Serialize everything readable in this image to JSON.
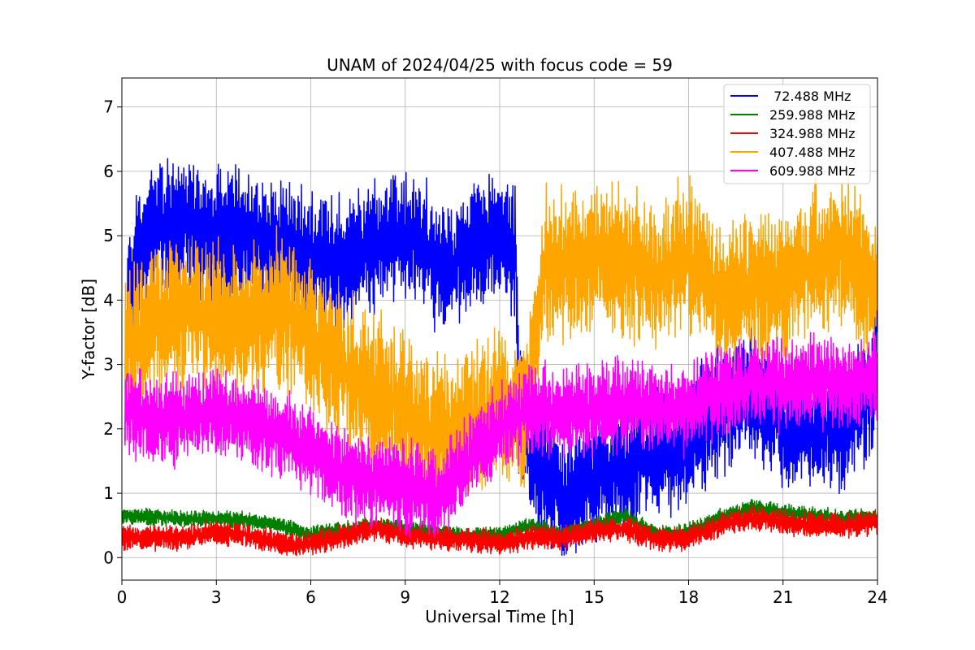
{
  "chart_data": {
    "type": "line",
    "title": "UNAM of 2024/04/25 with focus code = 59",
    "xlabel": "Universal Time [h]",
    "ylabel": "Y-factor [dB]",
    "xlim": [
      0,
      24
    ],
    "ylim": [
      -0.35,
      7.45
    ],
    "xticks": [
      "0",
      "3",
      "6",
      "9",
      "12",
      "15",
      "18",
      "21",
      "24"
    ],
    "yticks": [
      "0",
      "1",
      "2",
      "3",
      "4",
      "5",
      "6",
      "7"
    ],
    "grid": true,
    "legend_position": "top-right",
    "series": [
      {
        "name": " 72.488 MHz",
        "color": "#0000ff",
        "noise": 1.05,
        "x": [
          0.1,
          0.2,
          0.5,
          1,
          2,
          3,
          4,
          5,
          6,
          7,
          8,
          8.8,
          9.5,
          10,
          11,
          12,
          12.5,
          12.6,
          13,
          13.5,
          14,
          14.5,
          15,
          16,
          17,
          18,
          19,
          20,
          21,
          22,
          23,
          23.9,
          24
        ],
        "y": [
          2.5,
          4.3,
          4.7,
          5.1,
          5.2,
          5.0,
          5.0,
          4.9,
          4.7,
          4.6,
          4.8,
          5.1,
          4.9,
          4.5,
          4.7,
          5.0,
          4.8,
          2.3,
          1.5,
          1.2,
          1.0,
          1.0,
          1.3,
          1.4,
          1.6,
          1.8,
          2.3,
          2.7,
          2.0,
          2.0,
          2.0,
          2.7,
          4.5
        ]
      },
      {
        "name": "259.988 MHz",
        "color": "#008000",
        "noise": 0.14,
        "x": [
          0,
          1,
          2,
          3,
          4,
          5,
          6,
          7,
          8,
          9,
          10,
          11,
          12,
          13,
          14,
          15,
          16,
          17,
          18,
          19,
          20,
          21,
          22,
          23,
          24
        ],
        "y": [
          0.65,
          0.63,
          0.6,
          0.6,
          0.58,
          0.5,
          0.35,
          0.42,
          0.5,
          0.45,
          0.4,
          0.33,
          0.35,
          0.5,
          0.35,
          0.5,
          0.65,
          0.35,
          0.4,
          0.62,
          0.78,
          0.7,
          0.65,
          0.62,
          0.62
        ]
      },
      {
        "name": "324.988 MHz",
        "color": "#ff0000",
        "noise": 0.2,
        "x": [
          0,
          1,
          2,
          3,
          4,
          5,
          6,
          7,
          8,
          9,
          10,
          11,
          12,
          13,
          14,
          15,
          16,
          17,
          18,
          19,
          20,
          21,
          22,
          23,
          24
        ],
        "y": [
          0.32,
          0.3,
          0.32,
          0.38,
          0.35,
          0.22,
          0.22,
          0.32,
          0.45,
          0.35,
          0.3,
          0.28,
          0.22,
          0.32,
          0.3,
          0.42,
          0.45,
          0.28,
          0.3,
          0.5,
          0.62,
          0.55,
          0.5,
          0.5,
          0.55
        ]
      },
      {
        "name": "407.488 MHz",
        "color": "#ffa500",
        "noise": 1.25,
        "x": [
          0.1,
          1,
          2,
          3,
          4,
          5,
          6,
          7,
          8,
          9,
          10,
          11,
          12,
          12.8,
          13.5,
          14,
          15,
          16,
          17,
          18,
          19,
          20,
          21,
          22,
          23,
          24
        ],
        "y": [
          3.2,
          3.6,
          3.8,
          3.7,
          3.6,
          3.9,
          3.4,
          2.9,
          2.6,
          2.3,
          1.9,
          2.1,
          2.3,
          2.2,
          4.6,
          4.5,
          4.7,
          4.6,
          4.4,
          4.7,
          4.0,
          4.2,
          4.3,
          4.6,
          4.8,
          4.2
        ]
      },
      {
        "name": "609.988 MHz",
        "color": "#ff00ff",
        "noise": 0.75,
        "x": [
          0.1,
          1,
          2,
          3,
          4,
          5,
          6,
          7,
          8,
          9,
          10,
          11,
          12,
          13,
          14,
          15,
          16,
          17,
          18,
          19,
          20,
          21,
          22,
          23,
          24
        ],
        "y": [
          2.3,
          2.1,
          2.2,
          2.3,
          2.1,
          1.9,
          1.7,
          1.3,
          1.2,
          1.1,
          1.0,
          1.5,
          2.0,
          2.3,
          2.2,
          2.3,
          2.4,
          2.3,
          2.3,
          2.6,
          2.7,
          2.7,
          2.8,
          2.7,
          2.8
        ]
      }
    ]
  }
}
